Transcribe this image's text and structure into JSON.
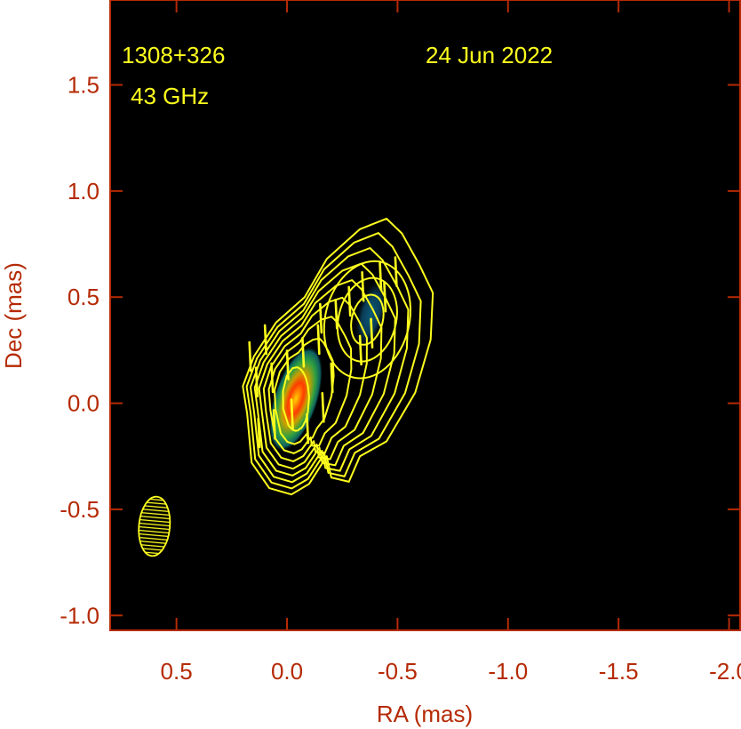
{
  "chart_data": {
    "type": "heatmap",
    "subtype": "VLBI total-intensity image with contours and polarization EVPA ticks",
    "annotations": {
      "source": "1308+326",
      "frequency": "43 GHz",
      "date": "24 Jun 2022"
    },
    "xlabel": "RA (mas)",
    "ylabel": "Dec (mas)",
    "xlim": [
      0.8,
      -2.05
    ],
    "ylim": [
      -1.07,
      1.9
    ],
    "x_ticks": [
      0.5,
      0.0,
      -0.5,
      -1.0,
      -1.5,
      -2.0
    ],
    "x_tick_labels": [
      "0.5",
      "0.0",
      "-0.5",
      "-1.0",
      "-1.5",
      "-2.0"
    ],
    "y_ticks": [
      1.5,
      1.0,
      0.5,
      0.0,
      -0.5,
      -1.0
    ],
    "y_tick_labels": [
      "1.5",
      "1.0",
      "0.5",
      "0.0",
      "-0.5",
      "-1.0"
    ],
    "intensity_peaks": [
      {
        "name": "core",
        "ra": -0.04,
        "dec": 0.02,
        "relative_peak": 1.0
      },
      {
        "name": "jet knot",
        "ra": -0.38,
        "dec": 0.42,
        "relative_peak": 0.3
      }
    ],
    "beam": {
      "ra": 0.6,
      "dec": -0.58,
      "major_mas": 0.28,
      "minor_mas": 0.14,
      "pa_deg": -5
    },
    "contours": {
      "count": 9,
      "color": "#ffff1e"
    },
    "evpa_vectors": [
      {
        "ra": 0.17,
        "dec": 0.22
      },
      {
        "ra": 0.14,
        "dec": 0.1
      },
      {
        "ra": 0.07,
        "dec": 0.12
      },
      {
        "ra": -0.0,
        "dec": 0.18
      },
      {
        "ra": -0.07,
        "dec": 0.24
      },
      {
        "ra": -0.14,
        "dec": 0.3
      },
      {
        "ra": 0.13,
        "dec": -0.14
      },
      {
        "ra": 0.06,
        "dec": -0.1
      },
      {
        "ra": -0.02,
        "dec": -0.05
      },
      {
        "ra": -0.09,
        "dec": -0.12
      },
      {
        "ra": -0.16,
        "dec": -0.02
      },
      {
        "ra": -0.2,
        "dec": 0.12
      },
      {
        "ra": -0.15,
        "dec": 0.4
      },
      {
        "ra": -0.22,
        "dec": 0.42
      },
      {
        "ra": -0.28,
        "dec": 0.48
      },
      {
        "ra": -0.34,
        "dec": 0.55
      },
      {
        "ra": -0.42,
        "dec": 0.6
      },
      {
        "ra": -0.49,
        "dec": 0.62
      },
      {
        "ra": -0.38,
        "dec": 0.33
      },
      {
        "ra": -0.44,
        "dec": 0.5
      },
      {
        "ra": -0.33,
        "dec": 0.25
      },
      {
        "ra": 0.1,
        "dec": 0.3
      }
    ],
    "colors": {
      "background": "#000000",
      "frame": "#b52a05",
      "contour": "#ffff1e",
      "text_axes": "#b52a05",
      "text_annotation": "#ffff1e"
    }
  }
}
